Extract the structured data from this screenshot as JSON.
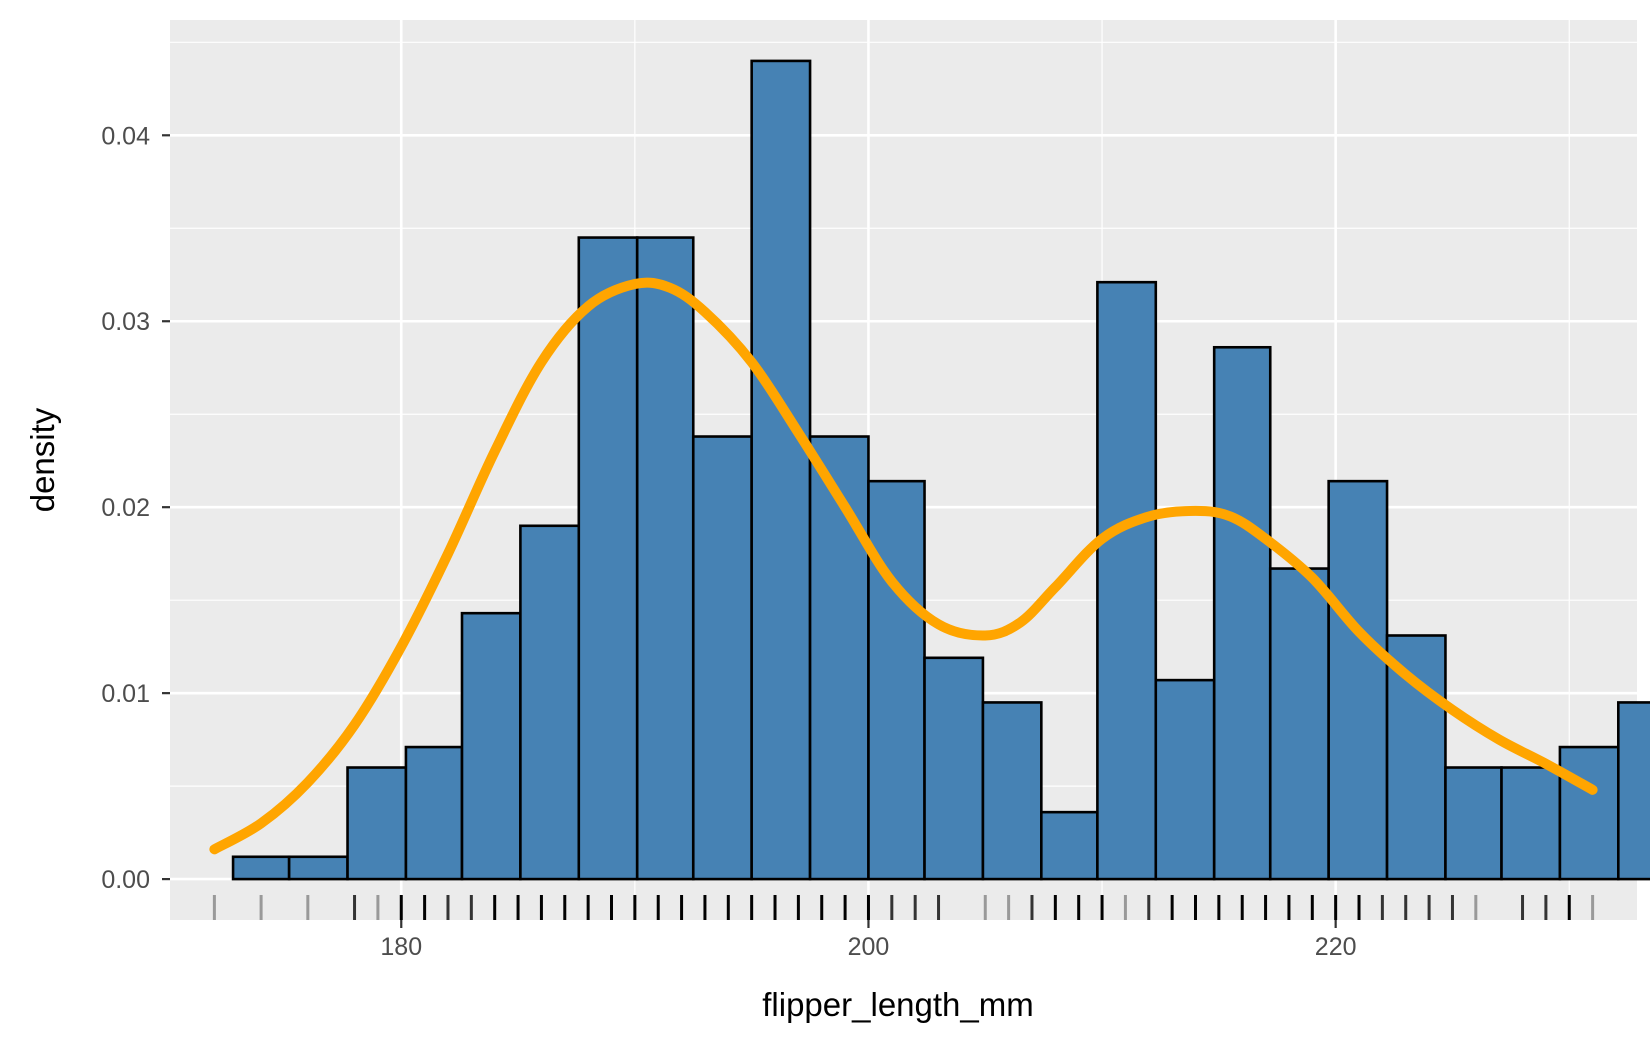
{
  "chart_data": {
    "type": "bar",
    "xlabel": "flipper_length_mm",
    "ylabel": "density",
    "xlim": [
      170.1,
      232.9
    ],
    "ylim": [
      -0.0022,
      0.0462
    ],
    "x_ticks": [
      180,
      200,
      220
    ],
    "x_tick_labels": [
      "180",
      "200",
      "220"
    ],
    "y_ticks": [
      0,
      0.01,
      0.02,
      0.03,
      0.04
    ],
    "y_tick_labels": [
      "0.00",
      "0.01",
      "0.02",
      "0.03",
      "0.04"
    ],
    "x_minor_ticks": [
      170,
      190,
      210,
      230
    ],
    "y_minor_ticks": [
      0.005,
      0.015,
      0.025,
      0.035,
      0.045
    ],
    "grid": true,
    "bins": [
      {
        "x0": 172.8,
        "x1": 175.2,
        "density": 0.0012
      },
      {
        "x0": 175.2,
        "x1": 177.7,
        "density": 0.0012
      },
      {
        "x0": 177.7,
        "x1": 180.2,
        "density": 0.006
      },
      {
        "x0": 180.2,
        "x1": 182.6,
        "density": 0.0071
      },
      {
        "x0": 182.6,
        "x1": 185.1,
        "density": 0.0143
      },
      {
        "x0": 185.1,
        "x1": 187.6,
        "density": 0.019
      },
      {
        "x0": 187.6,
        "x1": 190.1,
        "density": 0.0345
      },
      {
        "x0": 190.1,
        "x1": 192.5,
        "density": 0.0345
      },
      {
        "x0": 192.5,
        "x1": 195.0,
        "density": 0.0238
      },
      {
        "x0": 195.0,
        "x1": 197.5,
        "density": 0.044
      },
      {
        "x0": 197.5,
        "x1": 200.0,
        "density": 0.0238
      },
      {
        "x0": 200.0,
        "x1": 202.4,
        "density": 0.0214
      },
      {
        "x0": 202.4,
        "x1": 204.9,
        "density": 0.0119
      },
      {
        "x0": 204.9,
        "x1": 207.4,
        "density": 0.0095
      },
      {
        "x0": 207.4,
        "x1": 209.8,
        "density": 0.0036
      },
      {
        "x0": 209.8,
        "x1": 212.3,
        "density": 0.0321
      },
      {
        "x0": 212.3,
        "x1": 214.8,
        "density": 0.0107
      },
      {
        "x0": 214.8,
        "x1": 217.2,
        "density": 0.0286
      },
      {
        "x0": 217.2,
        "x1": 219.7,
        "density": 0.0167
      },
      {
        "x0": 219.7,
        "x1": 222.2,
        "density": 0.0214
      },
      {
        "x0": 222.2,
        "x1": 224.7,
        "density": 0.0131
      },
      {
        "x0": 224.7,
        "x1": 227.1,
        "density": 0.006
      },
      {
        "x0": 227.1,
        "x1": 229.6,
        "density": 0.006
      },
      {
        "x0": 229.6,
        "x1": 232.1,
        "density": 0.0071
      },
      {
        "x0": 232.1,
        "x1": 234.6,
        "density": 0.0095
      }
    ],
    "density_curve": {
      "x": [
        172,
        174,
        176,
        178,
        180,
        182,
        184,
        186,
        188,
        190,
        191.5,
        193,
        195,
        197,
        199,
        201,
        203,
        205,
        206.5,
        208,
        210,
        212,
        214,
        215.5,
        217,
        219,
        221,
        223,
        225,
        227,
        229,
        231
      ],
      "y": [
        0.0016,
        0.003,
        0.0052,
        0.0083,
        0.0125,
        0.0175,
        0.023,
        0.0278,
        0.0308,
        0.032,
        0.0318,
        0.0305,
        0.0278,
        0.024,
        0.02,
        0.016,
        0.0137,
        0.0131,
        0.0138,
        0.0157,
        0.0183,
        0.0195,
        0.0198,
        0.0195,
        0.0183,
        0.0162,
        0.0133,
        0.011,
        0.0091,
        0.0075,
        0.0062,
        0.0048
      ]
    },
    "rug": [
      {
        "x": 172,
        "shade": "#999999"
      },
      {
        "x": 174,
        "shade": "#999999"
      },
      {
        "x": 176,
        "shade": "#999999"
      },
      {
        "x": 178,
        "shade": "#333333"
      },
      {
        "x": 179,
        "shade": "#999999"
      },
      {
        "x": 180,
        "shade": "#000000"
      },
      {
        "x": 181,
        "shade": "#000000"
      },
      {
        "x": 182,
        "shade": "#333333"
      },
      {
        "x": 183,
        "shade": "#333333"
      },
      {
        "x": 184,
        "shade": "#000000"
      },
      {
        "x": 185,
        "shade": "#000000"
      },
      {
        "x": 186,
        "shade": "#000000"
      },
      {
        "x": 187,
        "shade": "#000000"
      },
      {
        "x": 188,
        "shade": "#000000"
      },
      {
        "x": 189,
        "shade": "#000000"
      },
      {
        "x": 190,
        "shade": "#000000"
      },
      {
        "x": 191,
        "shade": "#000000"
      },
      {
        "x": 192,
        "shade": "#000000"
      },
      {
        "x": 193,
        "shade": "#000000"
      },
      {
        "x": 194,
        "shade": "#000000"
      },
      {
        "x": 195,
        "shade": "#000000"
      },
      {
        "x": 196,
        "shade": "#000000"
      },
      {
        "x": 197,
        "shade": "#000000"
      },
      {
        "x": 198,
        "shade": "#000000"
      },
      {
        "x": 199,
        "shade": "#000000"
      },
      {
        "x": 200,
        "shade": "#000000"
      },
      {
        "x": 201,
        "shade": "#333333"
      },
      {
        "x": 202,
        "shade": "#333333"
      },
      {
        "x": 203,
        "shade": "#333333"
      },
      {
        "x": 205,
        "shade": "#999999"
      },
      {
        "x": 206,
        "shade": "#999999"
      },
      {
        "x": 207,
        "shade": "#333333"
      },
      {
        "x": 208,
        "shade": "#000000"
      },
      {
        "x": 209,
        "shade": "#000000"
      },
      {
        "x": 210,
        "shade": "#000000"
      },
      {
        "x": 211,
        "shade": "#999999"
      },
      {
        "x": 212,
        "shade": "#333333"
      },
      {
        "x": 213,
        "shade": "#000000"
      },
      {
        "x": 214,
        "shade": "#000000"
      },
      {
        "x": 215,
        "shade": "#000000"
      },
      {
        "x": 216,
        "shade": "#000000"
      },
      {
        "x": 217,
        "shade": "#000000"
      },
      {
        "x": 218,
        "shade": "#000000"
      },
      {
        "x": 219,
        "shade": "#000000"
      },
      {
        "x": 220,
        "shade": "#000000"
      },
      {
        "x": 221,
        "shade": "#000000"
      },
      {
        "x": 222,
        "shade": "#333333"
      },
      {
        "x": 223,
        "shade": "#333333"
      },
      {
        "x": 224,
        "shade": "#333333"
      },
      {
        "x": 225,
        "shade": "#333333"
      },
      {
        "x": 226,
        "shade": "#999999"
      },
      {
        "x": 228,
        "shade": "#333333"
      },
      {
        "x": 229,
        "shade": "#333333"
      },
      {
        "x": 230,
        "shade": "#000000"
      },
      {
        "x": 231,
        "shade": "#999999"
      }
    ],
    "colors": {
      "panel_background": "#ebebeb",
      "grid_major": "#ffffff",
      "bar_fill": "#4682b4",
      "bar_outline": "#000000",
      "density_line": "#ffa500",
      "tick_label": "#4d4d4d"
    }
  }
}
